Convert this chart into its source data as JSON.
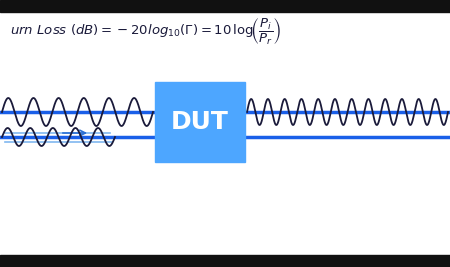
{
  "bg_color": "#ffffff",
  "top_bar_color": "#111111",
  "bottom_bar_color": "#111111",
  "dut_label": "DUT",
  "dut_color": "#4da6ff",
  "dut_text_color": "#ffffff",
  "line_color": "#1a5fe8",
  "wave_color": "#1a1a3a",
  "formula_color": "#1a1a3a",
  "arrow_color": "#2b6fd4",
  "light_blue_line": "#80b8f0",
  "fig_w": 4.5,
  "fig_h": 2.67,
  "dpi": 100
}
